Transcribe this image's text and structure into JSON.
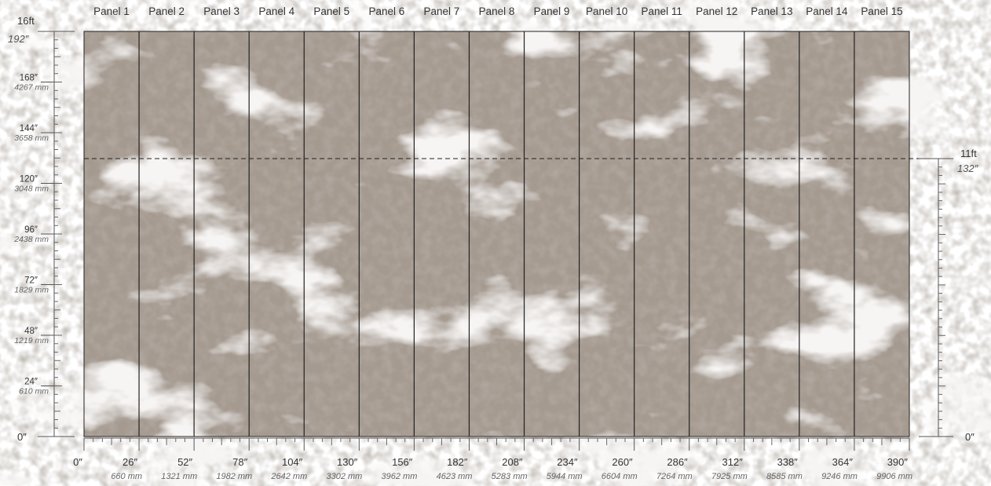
{
  "panels": [
    "Panel 1",
    "Panel 2",
    "Panel 3",
    "Panel 4",
    "Panel 5",
    "Panel 6",
    "Panel 7",
    "Panel 8",
    "Panel 9",
    "Panel 10",
    "Panel 11",
    "Panel 12",
    "Panel 13",
    "Panel 14",
    "Panel 15"
  ],
  "left_ruler": {
    "top_label": "16ft",
    "top_inches": "192″",
    "bottom_label": "0″",
    "marks": [
      {
        "inches": "24″",
        "mm": "610 mm"
      },
      {
        "inches": "48″",
        "mm": "1219 mm"
      },
      {
        "inches": "72″",
        "mm": "1829 mm"
      },
      {
        "inches": "96″",
        "mm": "2438 mm"
      },
      {
        "inches": "120″",
        "mm": "3048 mm"
      },
      {
        "inches": "144″",
        "mm": "3658 mm"
      },
      {
        "inches": "168″",
        "mm": "4267 mm"
      }
    ]
  },
  "right_ruler": {
    "top_label": "11ft",
    "top_inches": "132″",
    "bottom_label": "0″"
  },
  "bottom_ruler": {
    "marks": [
      {
        "inches": "0″",
        "mm": ""
      },
      {
        "inches": "26″",
        "mm": "660 mm"
      },
      {
        "inches": "52″",
        "mm": "1321 mm"
      },
      {
        "inches": "78″",
        "mm": "1982 mm"
      },
      {
        "inches": "104″",
        "mm": "2642 mm"
      },
      {
        "inches": "130″",
        "mm": "3302 mm"
      },
      {
        "inches": "156″",
        "mm": "3962 mm"
      },
      {
        "inches": "182″",
        "mm": "4623 mm"
      },
      {
        "inches": "208″",
        "mm": "5283 mm"
      },
      {
        "inches": "234″",
        "mm": "5944 mm"
      },
      {
        "inches": "260″",
        "mm": "6604 mm"
      },
      {
        "inches": "286″",
        "mm": "7264 mm"
      },
      {
        "inches": "312″",
        "mm": "7925 mm"
      },
      {
        "inches": "338″",
        "mm": "8585 mm"
      },
      {
        "inches": "364″",
        "mm": "9246 mm"
      },
      {
        "inches": "390″",
        "mm": "9906 mm"
      }
    ]
  },
  "colors": {
    "marble_base": "#a59a8f",
    "marble_vein": "#ece8e5",
    "panel_line": "#222222",
    "ruler": "#555555",
    "text": "#333333"
  }
}
